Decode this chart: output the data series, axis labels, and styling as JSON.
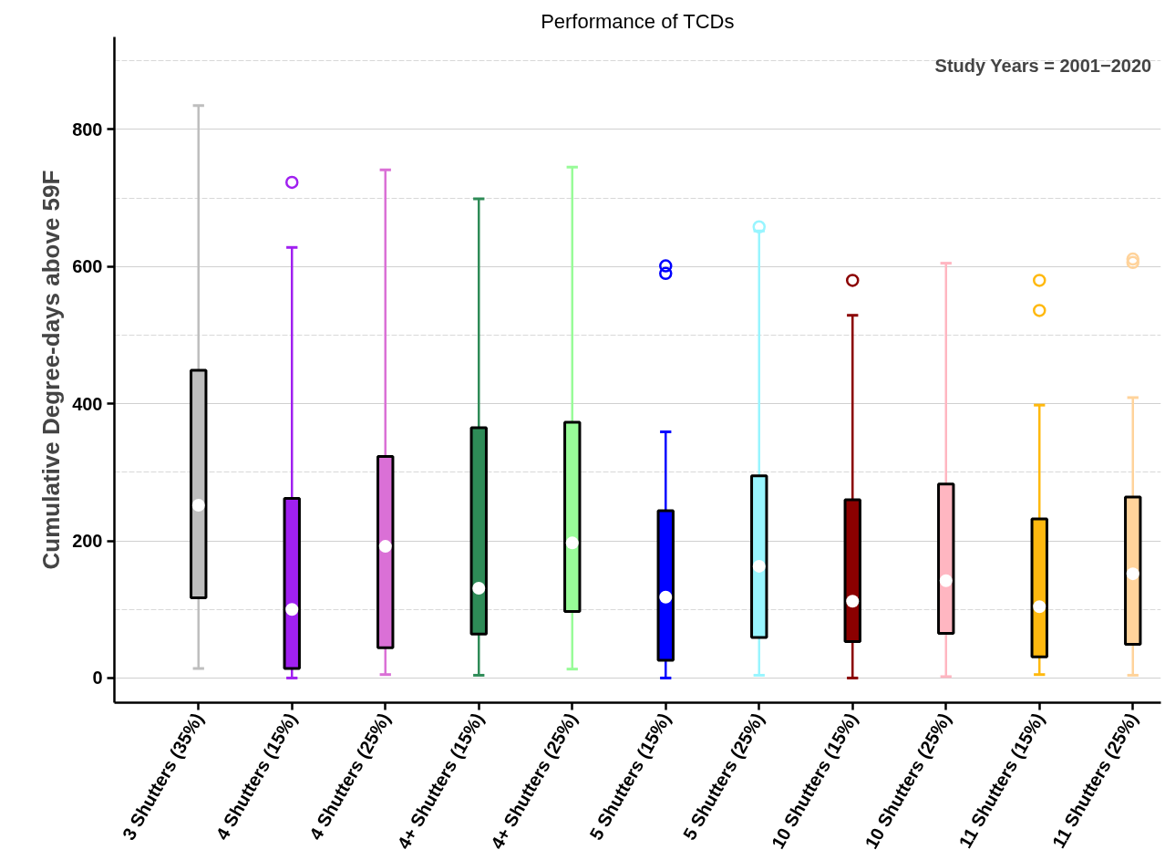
{
  "chart_data": {
    "type": "box",
    "title": "Performance of TCDs",
    "ylabel": "Cumulative Degree-days above 59F",
    "categories": [
      "3 Shutters (35%)",
      "4 Shutters (15%)",
      "4 Shutters (25%)",
      "4+ Shutters (15%)",
      "4+ Shutters (25%)",
      "5 Shutters (15%)",
      "5 Shutters (25%)",
      "10 Shutters (15%)",
      "10 Shutters (25%)",
      "11 Shutters (15%)",
      "11 Shutters (25%)"
    ],
    "colors": [
      "#bebebe",
      "#a020f0",
      "#da70d6",
      "#2e8b57",
      "#98fb98",
      "#0000ff",
      "#98f5ff",
      "#8b0000",
      "#ffb6c1",
      "#ffb90f",
      "#ffd39b"
    ],
    "boxes": [
      {
        "low": 14,
        "q1": 117,
        "median": 252,
        "q3": 449,
        "high": 835
      },
      {
        "low": 0,
        "q1": 14,
        "median": 100,
        "q3": 262,
        "high": 628,
        "outliers": [
          723
        ]
      },
      {
        "low": 5,
        "q1": 44,
        "median": 192,
        "q3": 323,
        "high": 741
      },
      {
        "low": 4,
        "q1": 64,
        "median": 131,
        "q3": 365,
        "high": 699
      },
      {
        "low": 13,
        "q1": 97,
        "median": 197,
        "q3": 373,
        "high": 745
      },
      {
        "low": 0,
        "q1": 26,
        "median": 118,
        "q3": 244,
        "high": 359,
        "outliers": [
          590,
          601
        ]
      },
      {
        "low": 4,
        "q1": 59,
        "median": 163,
        "q3": 295,
        "high": 652,
        "outliers": [
          658
        ]
      },
      {
        "low": 0,
        "q1": 53,
        "median": 112,
        "q3": 260,
        "high": 529,
        "outliers": [
          580
        ]
      },
      {
        "low": 2,
        "q1": 65,
        "median": 142,
        "q3": 283,
        "high": 605
      },
      {
        "low": 5,
        "q1": 31,
        "median": 104,
        "q3": 232,
        "high": 398,
        "outliers": [
          536,
          580
        ]
      },
      {
        "low": 4,
        "q1": 49,
        "median": 152,
        "q3": 264,
        "high": 409,
        "outliers": [
          606,
          611
        ]
      }
    ],
    "ylim": [
      -36,
      935
    ],
    "yticks": [
      0,
      200,
      400,
      600,
      800
    ],
    "grid": "y",
    "annotations": [
      "Study Years = 2001−2020"
    ]
  }
}
